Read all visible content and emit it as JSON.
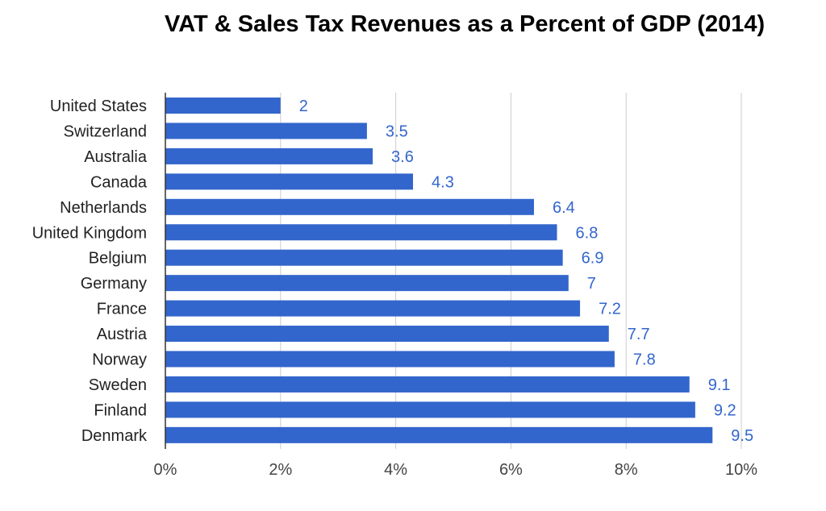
{
  "chart_data": {
    "type": "bar",
    "orientation": "horizontal",
    "title": "VAT & Sales Tax Revenues as a Percent of GDP (2014)",
    "categories": [
      "United States",
      "Switzerland",
      "Australia",
      "Canada",
      "Netherlands",
      "United Kingdom",
      "Belgium",
      "Germany",
      "France",
      "Austria",
      "Norway",
      "Sweden",
      "Finland",
      "Denmark"
    ],
    "values": [
      2,
      3.5,
      3.6,
      4.3,
      6.4,
      6.8,
      6.9,
      7,
      7.2,
      7.7,
      7.8,
      9.1,
      9.2,
      9.5
    ],
    "value_labels": [
      "2",
      "3.5",
      "3.6",
      "4.3",
      "6.4",
      "6.8",
      "6.9",
      "7",
      "7.2",
      "7.7",
      "7.8",
      "9.1",
      "9.2",
      "9.5"
    ],
    "xticks": [
      0,
      2,
      4,
      6,
      8,
      10
    ],
    "xtick_labels": [
      "0%",
      "2%",
      "4%",
      "6%",
      "8%",
      "10%"
    ],
    "xlim": [
      0,
      10
    ],
    "xlabel": "",
    "ylabel": "",
    "grid": true,
    "legend": "none",
    "colors": {
      "bar": "#3366cc",
      "value_label": "#3366cc",
      "grid": "#cccccc",
      "axis": "#333333"
    }
  }
}
